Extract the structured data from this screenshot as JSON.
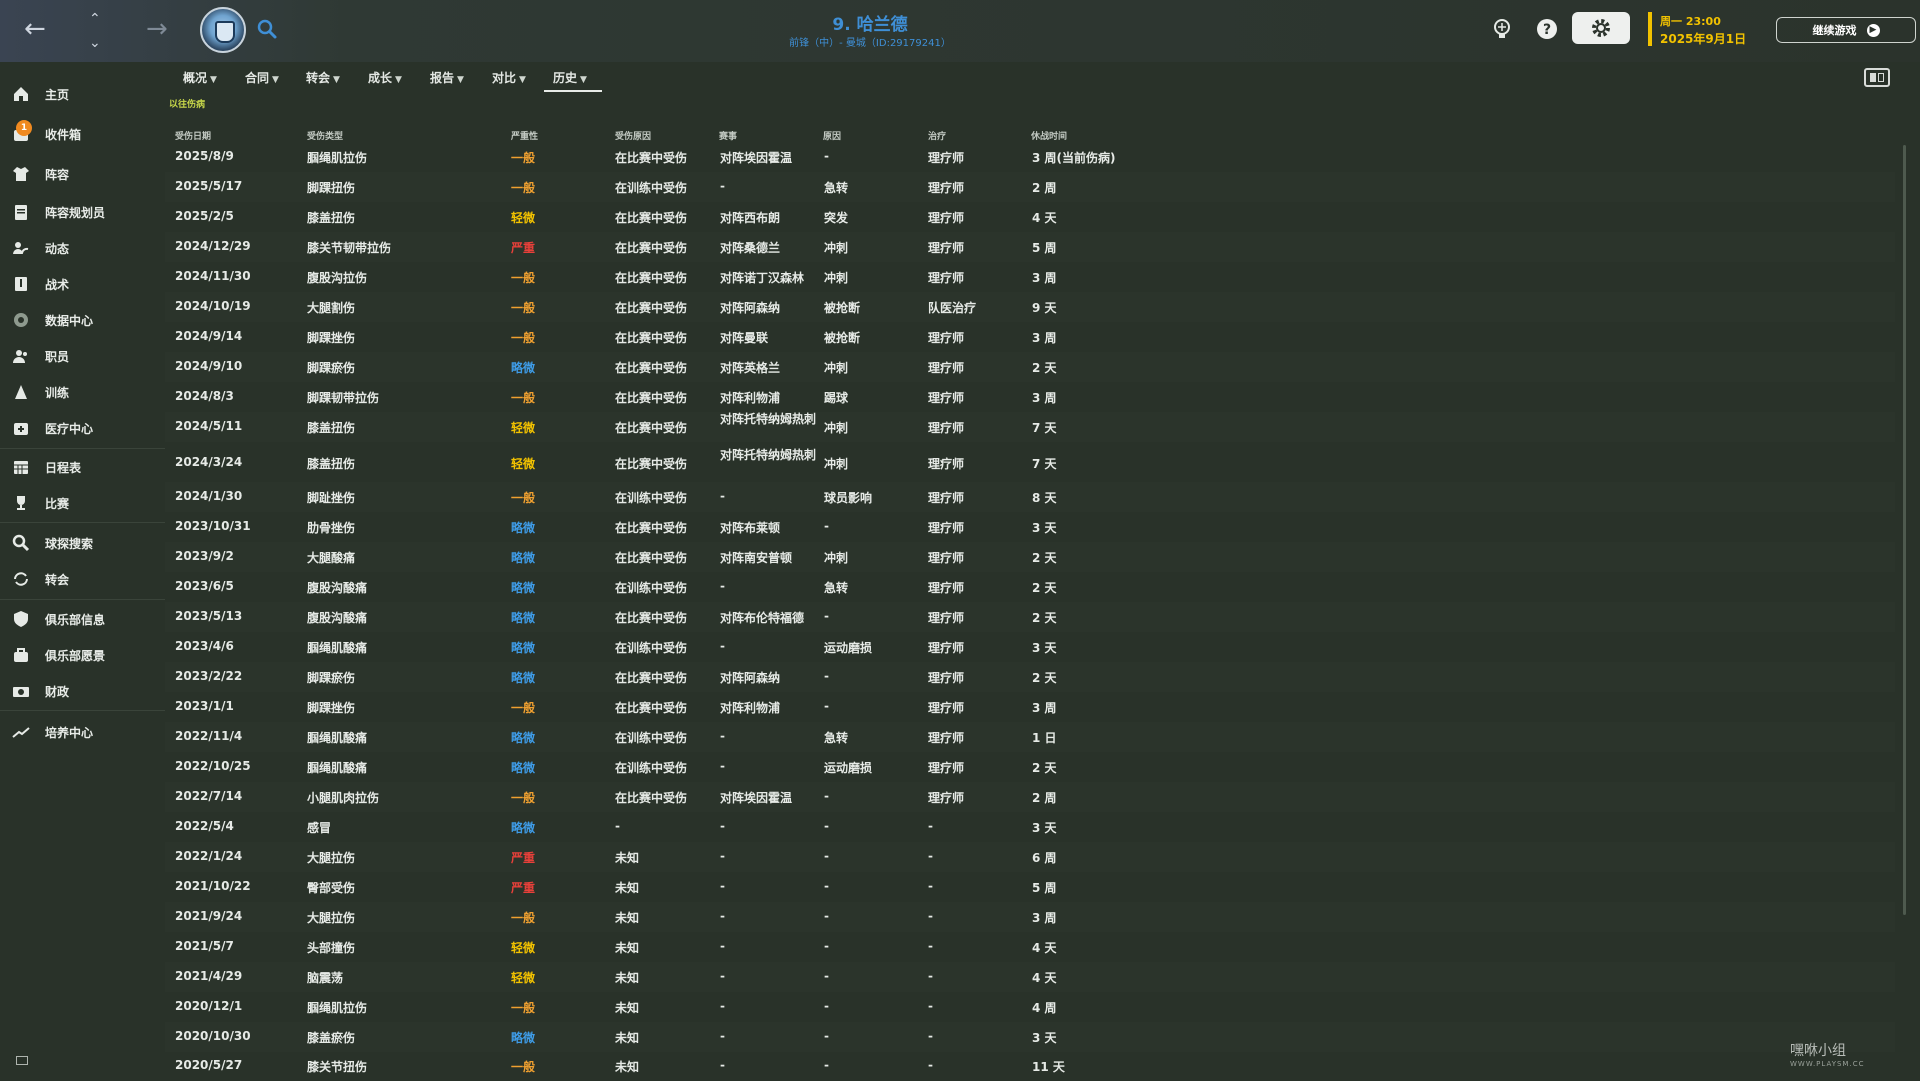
{
  "header": {
    "player_name": "9. 哈兰德",
    "player_sub": "前锋（中）- 曼城（ID:29179241）",
    "date_line1": "周一 23:00",
    "date_line2": "2025年9月1日",
    "continue_label": "继续游戏"
  },
  "sidebar": {
    "inbox_badge": "1",
    "items": [
      {
        "label": "主页",
        "icon": "home-icon"
      },
      {
        "label": "收件箱",
        "icon": "inbox-icon"
      },
      {
        "label": "阵容",
        "icon": "shirt-icon"
      },
      {
        "label": "阵容规划员",
        "icon": "clipboard-icon"
      },
      {
        "label": "动态",
        "icon": "dynamics-icon"
      },
      {
        "label": "战术",
        "icon": "tactics-icon"
      },
      {
        "label": "数据中心",
        "icon": "data-hub-icon"
      },
      {
        "label": "职员",
        "icon": "staff-icon"
      },
      {
        "label": "训练",
        "icon": "training-icon"
      },
      {
        "label": "医疗中心",
        "icon": "medical-icon"
      },
      {
        "label": "日程表",
        "icon": "calendar-icon"
      },
      {
        "label": "比赛",
        "icon": "trophy-icon"
      },
      {
        "label": "球探搜索",
        "icon": "search-icon"
      },
      {
        "label": "转会",
        "icon": "transfer-icon"
      },
      {
        "label": "俱乐部信息",
        "icon": "shield-icon"
      },
      {
        "label": "俱乐部愿景",
        "icon": "vision-icon"
      },
      {
        "label": "财政",
        "icon": "finance-icon"
      },
      {
        "label": "培养中心",
        "icon": "development-icon"
      }
    ]
  },
  "tabs": [
    "概况",
    "合同",
    "转会",
    "成长",
    "报告",
    "对比",
    "历史"
  ],
  "active_tab": "历史",
  "subtab": "以往伤病",
  "columns": [
    "受伤日期",
    "受伤类型",
    "严重性",
    "受伤原因",
    "赛事",
    "原因",
    "治疗",
    "休战时间"
  ],
  "severity_colors": {
    "略微": "#3e9be6",
    "轻微": "#f2c200",
    "一般": "#f0a030",
    "严重": "#e8403a"
  },
  "injuries": [
    {
      "date": "2025/8/9",
      "type": "腘绳肌拉伤",
      "severity": "一般",
      "cause": "在比赛中受伤",
      "match": "对阵埃因霍温",
      "reason": "-",
      "treatment": "理疗师",
      "duration": "3 周(当前伤病)"
    },
    {
      "date": "2025/5/17",
      "type": "脚踝扭伤",
      "severity": "一般",
      "cause": "在训练中受伤",
      "match": "-",
      "reason": "急转",
      "treatment": "理疗师",
      "duration": "2 周"
    },
    {
      "date": "2025/2/5",
      "type": "膝盖扭伤",
      "severity": "轻微",
      "cause": "在比赛中受伤",
      "match": "对阵西布朗",
      "reason": "突发",
      "treatment": "理疗师",
      "duration": "4 天"
    },
    {
      "date": "2024/12/29",
      "type": "膝关节韧带拉伤",
      "severity": "严重",
      "cause": "在比赛中受伤",
      "match": "对阵桑德兰",
      "reason": "冲刺",
      "treatment": "理疗师",
      "duration": "5 周"
    },
    {
      "date": "2024/11/30",
      "type": "腹股沟拉伤",
      "severity": "一般",
      "cause": "在比赛中受伤",
      "match": "对阵诺丁汉森林",
      "reason": "冲刺",
      "treatment": "理疗师",
      "duration": "3 周"
    },
    {
      "date": "2024/10/19",
      "type": "大腿割伤",
      "severity": "一般",
      "cause": "在比赛中受伤",
      "match": "对阵阿森纳",
      "reason": "被抢断",
      "treatment": "队医治疗",
      "duration": "9 天"
    },
    {
      "date": "2024/9/14",
      "type": "脚踝挫伤",
      "severity": "一般",
      "cause": "在比赛中受伤",
      "match": "对阵曼联",
      "reason": "被抢断",
      "treatment": "理疗师",
      "duration": "3 周"
    },
    {
      "date": "2024/9/10",
      "type": "脚踝瘀伤",
      "severity": "略微",
      "cause": "在比赛中受伤",
      "match": "对阵英格兰",
      "reason": "冲刺",
      "treatment": "理疗师",
      "duration": "2 天"
    },
    {
      "date": "2024/8/3",
      "type": "脚踝韧带拉伤",
      "severity": "一般",
      "cause": "在比赛中受伤",
      "match": "对阵利物浦",
      "reason": "踢球",
      "treatment": "理疗师",
      "duration": "3 周"
    },
    {
      "date": "2024/5/11",
      "type": "膝盖扭伤",
      "severity": "轻微",
      "cause": "在比赛中受伤",
      "match": "对阵托特纳姆热刺",
      "reason": "冲刺",
      "treatment": "理疗师",
      "duration": "7 天"
    },
    {
      "date": "2024/3/24",
      "type": "膝盖扭伤",
      "severity": "轻微",
      "cause": "在比赛中受伤",
      "match": "对阵托特纳姆热刺",
      "reason": "冲刺",
      "treatment": "理疗师",
      "duration": "7 天"
    },
    {
      "date": "2024/1/30",
      "type": "脚趾挫伤",
      "severity": "一般",
      "cause": "在训练中受伤",
      "match": "-",
      "reason": "球员影响",
      "treatment": "理疗师",
      "duration": "8 天"
    },
    {
      "date": "2023/10/31",
      "type": "肋骨挫伤",
      "severity": "略微",
      "cause": "在比赛中受伤",
      "match": "对阵布莱顿",
      "reason": "-",
      "treatment": "理疗师",
      "duration": "3 天"
    },
    {
      "date": "2023/9/2",
      "type": "大腿酸痛",
      "severity": "略微",
      "cause": "在比赛中受伤",
      "match": "对阵南安普顿",
      "reason": "冲刺",
      "treatment": "理疗师",
      "duration": "2 天"
    },
    {
      "date": "2023/6/5",
      "type": "腹股沟酸痛",
      "severity": "略微",
      "cause": "在训练中受伤",
      "match": "-",
      "reason": "急转",
      "treatment": "理疗师",
      "duration": "2 天"
    },
    {
      "date": "2023/5/13",
      "type": "腹股沟酸痛",
      "severity": "略微",
      "cause": "在比赛中受伤",
      "match": "对阵布伦特福德",
      "reason": "-",
      "treatment": "理疗师",
      "duration": "2 天"
    },
    {
      "date": "2023/4/6",
      "type": "腘绳肌酸痛",
      "severity": "略微",
      "cause": "在训练中受伤",
      "match": "-",
      "reason": "运动磨损",
      "treatment": "理疗师",
      "duration": "3 天"
    },
    {
      "date": "2023/2/22",
      "type": "脚踝瘀伤",
      "severity": "略微",
      "cause": "在比赛中受伤",
      "match": "对阵阿森纳",
      "reason": "-",
      "treatment": "理疗师",
      "duration": "2 天"
    },
    {
      "date": "2023/1/1",
      "type": "脚踝挫伤",
      "severity": "一般",
      "cause": "在比赛中受伤",
      "match": "对阵利物浦",
      "reason": "-",
      "treatment": "理疗师",
      "duration": "3 周"
    },
    {
      "date": "2022/11/4",
      "type": "腘绳肌酸痛",
      "severity": "略微",
      "cause": "在训练中受伤",
      "match": "-",
      "reason": "急转",
      "treatment": "理疗师",
      "duration": "1 日"
    },
    {
      "date": "2022/10/25",
      "type": "腘绳肌酸痛",
      "severity": "略微",
      "cause": "在训练中受伤",
      "match": "-",
      "reason": "运动磨损",
      "treatment": "理疗师",
      "duration": "2 天"
    },
    {
      "date": "2022/7/14",
      "type": "小腿肌肉拉伤",
      "severity": "一般",
      "cause": "在比赛中受伤",
      "match": "对阵埃因霍温",
      "reason": "-",
      "treatment": "理疗师",
      "duration": "2 周"
    },
    {
      "date": "2022/5/4",
      "type": "感冒",
      "severity": "略微",
      "cause": "-",
      "match": "-",
      "reason": "-",
      "treatment": "-",
      "duration": "3 天"
    },
    {
      "date": "2022/1/24",
      "type": "大腿拉伤",
      "severity": "严重",
      "cause": "未知",
      "match": "-",
      "reason": "-",
      "treatment": "-",
      "duration": "6 周"
    },
    {
      "date": "2021/10/22",
      "type": "臀部受伤",
      "severity": "严重",
      "cause": "未知",
      "match": "-",
      "reason": "-",
      "treatment": "-",
      "duration": "5 周"
    },
    {
      "date": "2021/9/24",
      "type": "大腿拉伤",
      "severity": "一般",
      "cause": "未知",
      "match": "-",
      "reason": "-",
      "treatment": "-",
      "duration": "3 周"
    },
    {
      "date": "2021/5/7",
      "type": "头部撞伤",
      "severity": "轻微",
      "cause": "未知",
      "match": "-",
      "reason": "-",
      "treatment": "-",
      "duration": "4 天"
    },
    {
      "date": "2021/4/29",
      "type": "脑震荡",
      "severity": "轻微",
      "cause": "未知",
      "match": "-",
      "reason": "-",
      "treatment": "-",
      "duration": "4 天"
    },
    {
      "date": "2020/12/1",
      "type": "腘绳肌拉伤",
      "severity": "一般",
      "cause": "未知",
      "match": "-",
      "reason": "-",
      "treatment": "-",
      "duration": "4 周"
    },
    {
      "date": "2020/10/30",
      "type": "膝盖瘀伤",
      "severity": "略微",
      "cause": "未知",
      "match": "-",
      "reason": "-",
      "treatment": "-",
      "duration": "3 天"
    },
    {
      "date": "2020/5/27",
      "type": "膝关节扭伤",
      "severity": "一般",
      "cause": "未知",
      "match": "-",
      "reason": "-",
      "treatment": "-",
      "duration": "11 天"
    }
  ],
  "watermark": {
    "title": "嘿咻小组",
    "url": "WWW.PLAYSM.CC"
  }
}
